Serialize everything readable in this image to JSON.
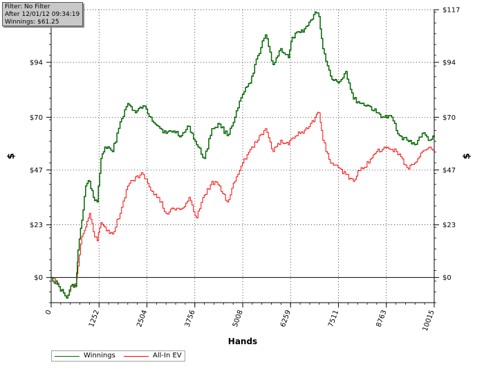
{
  "info": {
    "filter": "Filter: No Filter",
    "after": "After 12/01/12 09:34:19",
    "winnings": "Winnings: $61.25"
  },
  "chart_data": {
    "type": "line",
    "xlabel": "Hands",
    "ylabel": "$",
    "xlim": [
      0,
      10015
    ],
    "ylim": [
      -11,
      117
    ],
    "x_ticks": [
      0,
      1252,
      2504,
      3756,
      5008,
      6259,
      7511,
      8763,
      10015
    ],
    "y_ticks": [
      0,
      23,
      47,
      70,
      94,
      117
    ],
    "y_tick_labels": [
      "$0",
      "$23",
      "$47",
      "$70",
      "$94",
      "$117"
    ],
    "grid": true,
    "legend_position": "bottom-left",
    "colors": {
      "winnings": "#006600",
      "allin_ev": "#ff0000",
      "zero_line": "#000000",
      "grid": "#000000"
    },
    "x": [
      0,
      200,
      400,
      550,
      650,
      700,
      800,
      900,
      1000,
      1100,
      1200,
      1300,
      1400,
      1600,
      1800,
      2000,
      2200,
      2400,
      2600,
      2800,
      3000,
      3200,
      3400,
      3600,
      3800,
      4000,
      4200,
      4400,
      4600,
      4800,
      5000,
      5200,
      5400,
      5600,
      5800,
      6000,
      6200,
      6300,
      6500,
      6700,
      6900,
      7000,
      7100,
      7300,
      7500,
      7700,
      7900,
      8100,
      8300,
      8500,
      8700,
      8900,
      9100,
      9300,
      9500,
      9700,
      9900,
      10015
    ],
    "series": [
      {
        "name": "Winnings",
        "values": [
          0,
          -4,
          -9,
          -3,
          -4,
          12,
          25,
          40,
          42,
          35,
          33,
          52,
          57,
          55,
          68,
          76,
          72,
          75,
          70,
          66,
          63,
          64,
          62,
          66,
          58,
          52,
          65,
          67,
          62,
          70,
          80,
          85,
          97,
          106,
          93,
          100,
          96,
          105,
          107,
          110,
          116,
          114,
          100,
          88,
          85,
          90,
          78,
          76,
          75,
          72,
          70,
          70,
          62,
          60,
          58,
          63,
          60,
          61.25
        ]
      },
      {
        "name": "All-In EV",
        "values": [
          0,
          -4,
          -9,
          -3,
          -4,
          5,
          18,
          22,
          28,
          20,
          16,
          24,
          22,
          19,
          28,
          40,
          44,
          45,
          38,
          35,
          28,
          30,
          30,
          35,
          26,
          36,
          42,
          40,
          33,
          42,
          50,
          56,
          60,
          65,
          55,
          60,
          58,
          61,
          63,
          65,
          70,
          72,
          60,
          50,
          48,
          45,
          42,
          48,
          50,
          55,
          57,
          56,
          54,
          48,
          50,
          55,
          57,
          56
        ]
      }
    ]
  },
  "legend": {
    "items": [
      {
        "label": "Winnings",
        "color": "#006600"
      },
      {
        "label": "All-In EV",
        "color": "#ff0000"
      }
    ]
  }
}
